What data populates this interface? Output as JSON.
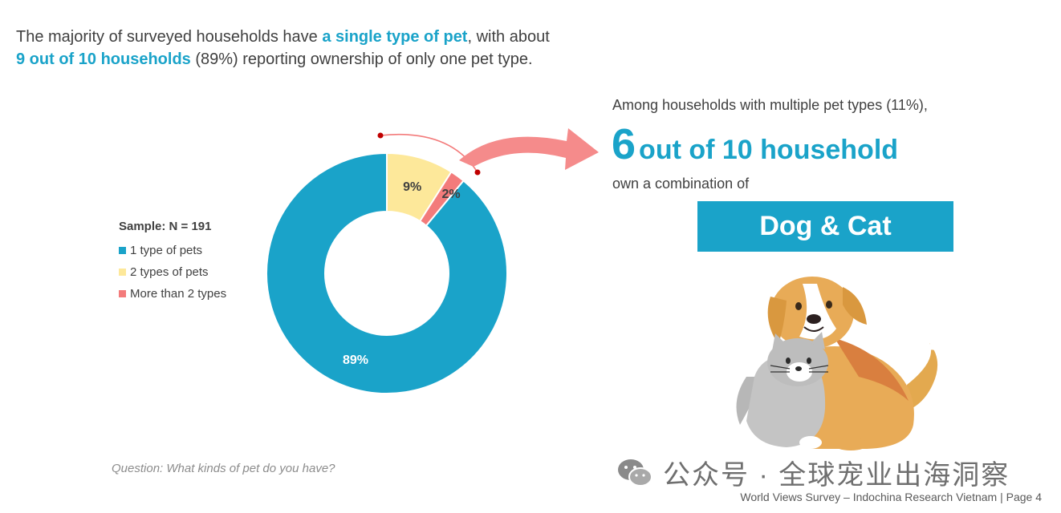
{
  "intro": {
    "part1": "The majority of surveyed households have ",
    "hl1": "a single type of pet",
    "part2": ", with about ",
    "hl2": "9 out of 10 households",
    "part3": " (89%) reporting ownership of only one pet type."
  },
  "legend": {
    "sample": "Sample: N = 191"
  },
  "chart_data": {
    "type": "pie",
    "categories": [
      "1 type of pets",
      "2 types of pets",
      "More than 2 types"
    ],
    "values": [
      89,
      9,
      2
    ],
    "data_labels": [
      "89%",
      "9%",
      "2%"
    ],
    "colors": [
      "#1aa3c9",
      "#fde89a",
      "#f37b7b"
    ],
    "donut": true,
    "legend_position": "left"
  },
  "right": {
    "intro": "Among households with multiple pet types (11%),",
    "big_number": "6",
    "big_text": "out of 10 household",
    "combo_label": "own a combination of",
    "combo": "Dog & Cat"
  },
  "question": "Question: What kinds of pet do you have?",
  "watermark": "公众号 · 全球宠业出海洞察",
  "footer": "World Views Survey – Indochina Research Vietnam | Page 4",
  "icons": {
    "watermark": "wechat-icon",
    "illustration": "dog-and-cat-illustration",
    "arrow": "curved-arrow-icon"
  }
}
